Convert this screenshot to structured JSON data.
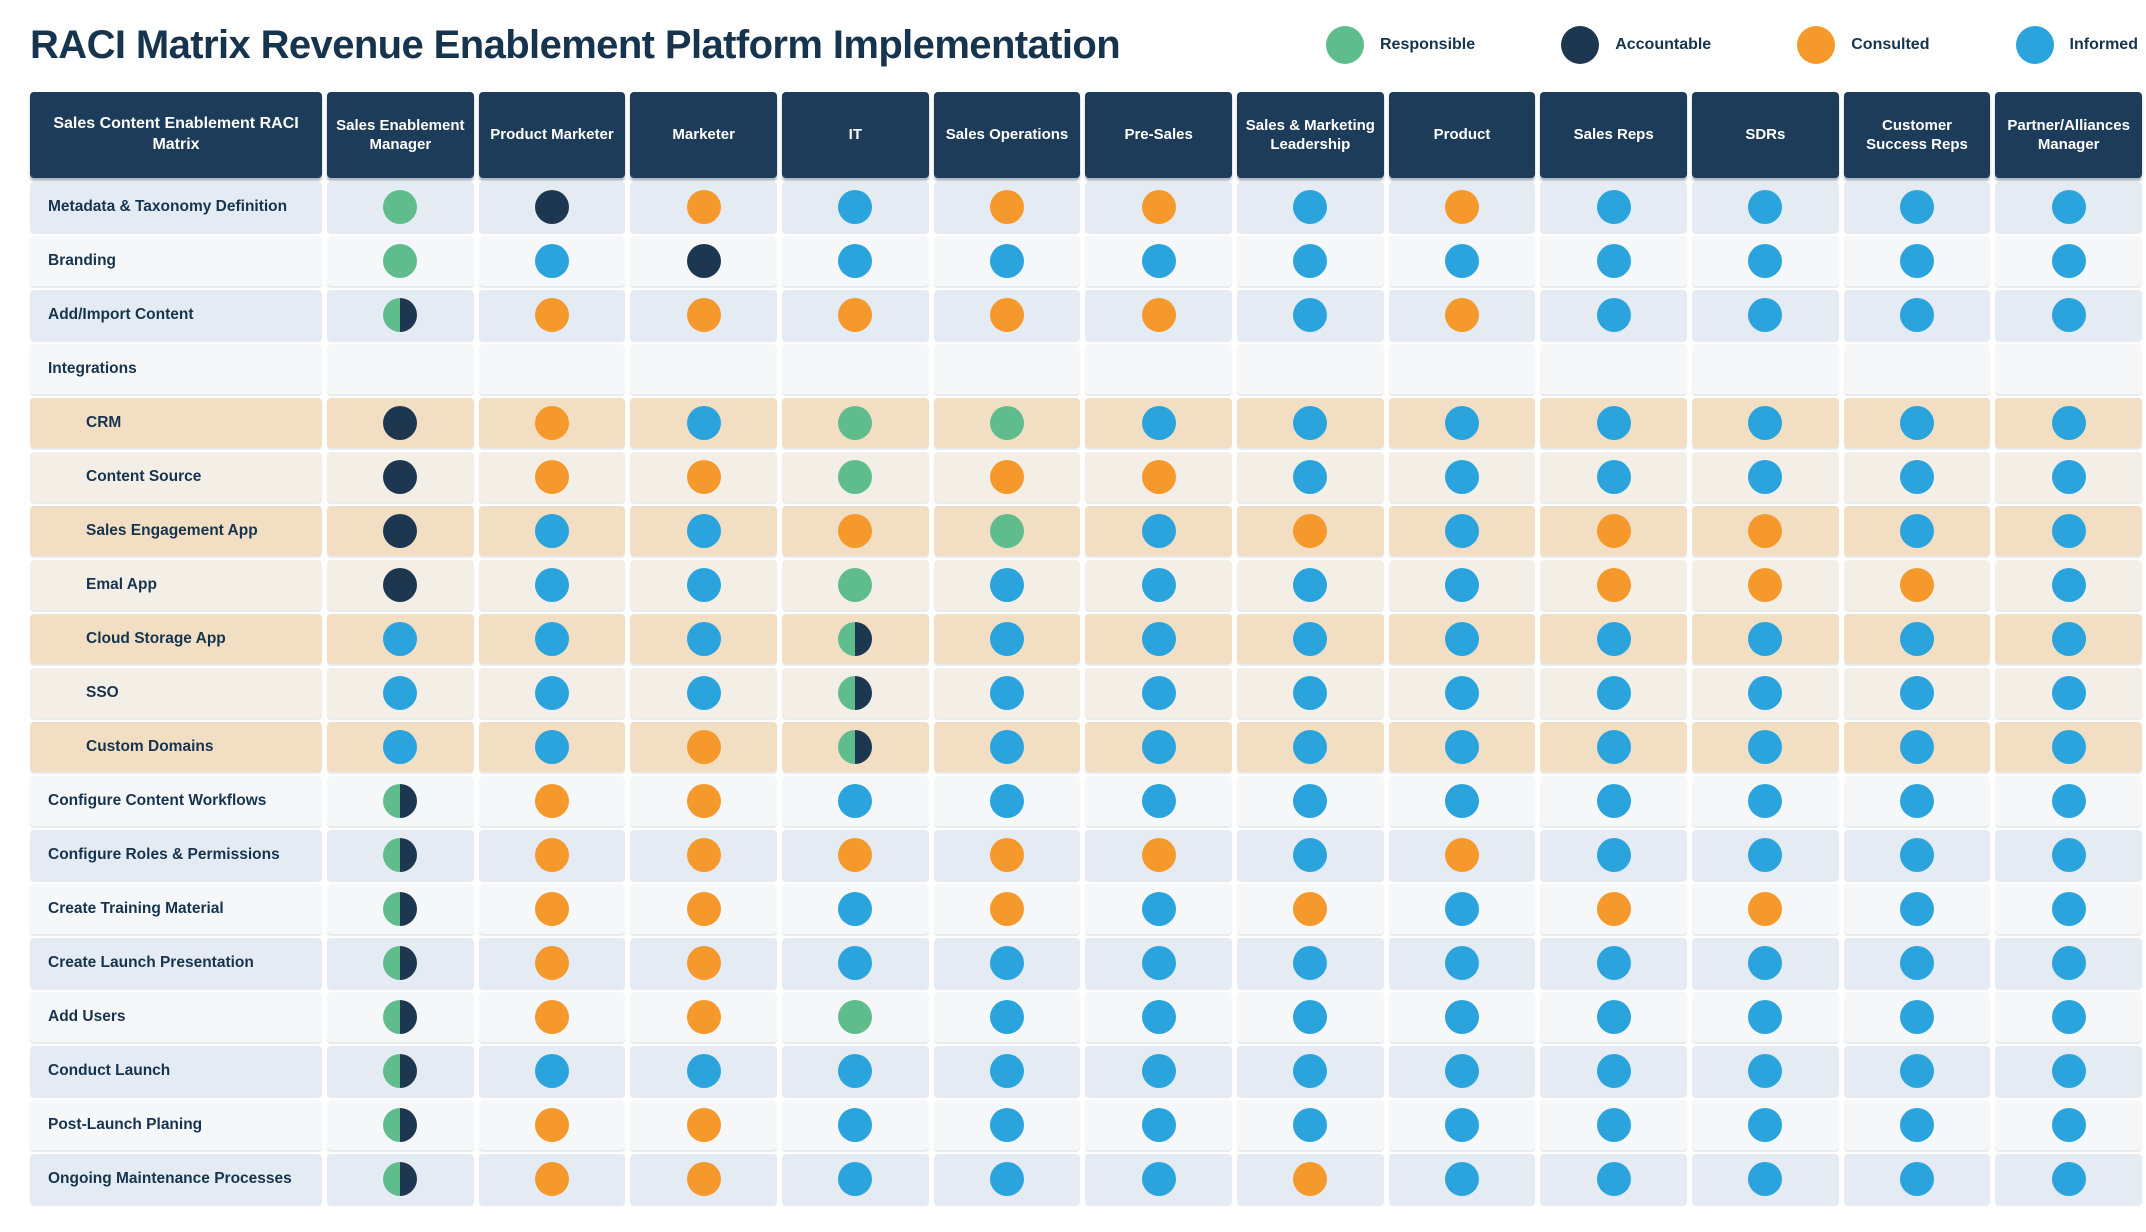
{
  "title": "RACI Matrix Revenue Enablement Platform Implementation",
  "colors": {
    "responsible": "#5fbd8d",
    "accountable": "#1d3751",
    "consulted": "#f6992c",
    "informed": "#2ba3dd",
    "header_bg": "#1d3c59",
    "header_text": "#ffffff",
    "title_text": "#17344f",
    "band_gray": "#e4ebf2",
    "band_light": "#f5f7f9",
    "band_tan": "#f2dfc3",
    "band_cream": "#f3efe7"
  },
  "legend": {
    "items": [
      {
        "label": "Responsible",
        "color_key": "responsible"
      },
      {
        "label": "Accountable",
        "color_key": "accountable"
      },
      {
        "label": "Consulted",
        "color_key": "consulted"
      },
      {
        "label": "Informed",
        "color_key": "informed"
      }
    ]
  },
  "chart_data": {
    "type": "table",
    "title": "RACI Matrix Revenue Enablement Platform Implementation",
    "corner_label": "Sales Content Enablement RACI Matrix",
    "code_legend": {
      "R": "Responsible",
      "A": "Accountable",
      "C": "Consulted",
      "I": "Informed",
      "RA": "Responsible + Accountable",
      "": "none"
    },
    "columns": [
      "Sales Enablement Manager",
      "Product Marketer",
      "Marketer",
      "IT",
      "Sales Operations",
      "Pre-Sales",
      "Sales & Marketing Leadership",
      "Product",
      "Sales Reps",
      "SDRs",
      "Customer Success Reps",
      "Partner/Alliances Manager"
    ],
    "rows": [
      {
        "label": "Metadata & Taxonomy Definition",
        "indent": false,
        "band": "gray",
        "values": [
          "R",
          "A",
          "C",
          "I",
          "C",
          "C",
          "I",
          "C",
          "I",
          "I",
          "I",
          "I"
        ]
      },
      {
        "label": "Branding",
        "indent": false,
        "band": "light",
        "values": [
          "R",
          "I",
          "A",
          "I",
          "I",
          "I",
          "I",
          "I",
          "I",
          "I",
          "I",
          "I"
        ]
      },
      {
        "label": "Add/Import Content",
        "indent": false,
        "band": "gray",
        "values": [
          "RA",
          "C",
          "C",
          "C",
          "C",
          "C",
          "I",
          "C",
          "I",
          "I",
          "I",
          "I"
        ]
      },
      {
        "label": "Integrations",
        "indent": false,
        "band": "light",
        "values": [
          "",
          "",
          "",
          "",
          "",
          "",
          "",
          "",
          "",
          "",
          "",
          ""
        ]
      },
      {
        "label": "CRM",
        "indent": true,
        "band": "tan",
        "values": [
          "A",
          "C",
          "I",
          "R",
          "R",
          "I",
          "I",
          "I",
          "I",
          "I",
          "I",
          "I"
        ]
      },
      {
        "label": "Content Source",
        "indent": true,
        "band": "cream",
        "values": [
          "A",
          "C",
          "C",
          "R",
          "C",
          "C",
          "I",
          "I",
          "I",
          "I",
          "I",
          "I"
        ]
      },
      {
        "label": "Sales Engagement App",
        "indent": true,
        "band": "tan",
        "values": [
          "A",
          "I",
          "I",
          "C",
          "R",
          "I",
          "C",
          "I",
          "C",
          "C",
          "I",
          "I"
        ]
      },
      {
        "label": "Emal App",
        "indent": true,
        "band": "cream",
        "values": [
          "A",
          "I",
          "I",
          "R",
          "I",
          "I",
          "I",
          "I",
          "C",
          "C",
          "C",
          "I"
        ]
      },
      {
        "label": "Cloud Storage App",
        "indent": true,
        "band": "tan",
        "values": [
          "I",
          "I",
          "I",
          "RA",
          "I",
          "I",
          "I",
          "I",
          "I",
          "I",
          "I",
          "I"
        ]
      },
      {
        "label": "SSO",
        "indent": true,
        "band": "cream",
        "values": [
          "I",
          "I",
          "I",
          "RA",
          "I",
          "I",
          "I",
          "I",
          "I",
          "I",
          "I",
          "I"
        ]
      },
      {
        "label": "Custom Domains",
        "indent": true,
        "band": "tan",
        "values": [
          "I",
          "I",
          "C",
          "RA",
          "I",
          "I",
          "I",
          "I",
          "I",
          "I",
          "I",
          "I"
        ]
      },
      {
        "label": "Configure Content Workflows",
        "indent": false,
        "band": "light",
        "values": [
          "RA",
          "C",
          "C",
          "I",
          "I",
          "I",
          "I",
          "I",
          "I",
          "I",
          "I",
          "I"
        ]
      },
      {
        "label": "Configure Roles & Permissions",
        "indent": false,
        "band": "gray",
        "values": [
          "RA",
          "C",
          "C",
          "C",
          "C",
          "C",
          "I",
          "C",
          "I",
          "I",
          "I",
          "I"
        ]
      },
      {
        "label": "Create Training Material",
        "indent": false,
        "band": "light",
        "values": [
          "RA",
          "C",
          "C",
          "I",
          "C",
          "I",
          "C",
          "I",
          "C",
          "C",
          "I",
          "I"
        ]
      },
      {
        "label": "Create Launch Presentation",
        "indent": false,
        "band": "gray",
        "values": [
          "RA",
          "C",
          "C",
          "I",
          "I",
          "I",
          "I",
          "I",
          "I",
          "I",
          "I",
          "I"
        ]
      },
      {
        "label": "Add Users",
        "indent": false,
        "band": "light",
        "values": [
          "RA",
          "C",
          "C",
          "R",
          "I",
          "I",
          "I",
          "I",
          "I",
          "I",
          "I",
          "I"
        ]
      },
      {
        "label": "Conduct Launch",
        "indent": false,
        "band": "gray",
        "values": [
          "RA",
          "I",
          "I",
          "I",
          "I",
          "I",
          "I",
          "I",
          "I",
          "I",
          "I",
          "I"
        ]
      },
      {
        "label": "Post-Launch Planing",
        "indent": false,
        "band": "light",
        "values": [
          "RA",
          "C",
          "C",
          "I",
          "I",
          "I",
          "I",
          "I",
          "I",
          "I",
          "I",
          "I"
        ]
      },
      {
        "label": "Ongoing Maintenance Processes",
        "indent": false,
        "band": "gray",
        "values": [
          "RA",
          "C",
          "C",
          "I",
          "I",
          "I",
          "C",
          "I",
          "I",
          "I",
          "I",
          "I"
        ]
      }
    ]
  }
}
